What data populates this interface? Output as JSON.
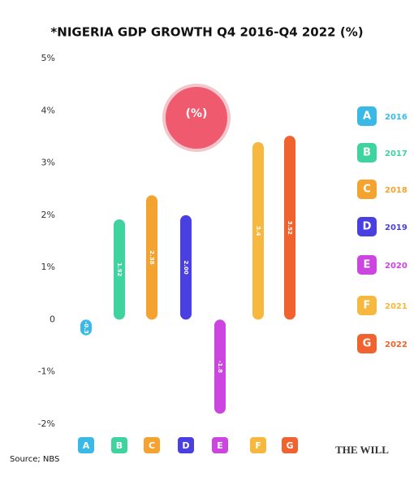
{
  "chart_data": {
    "type": "bar",
    "title": "*NIGERIA GDP GROWTH Q4 2016-Q4 2022 (%)",
    "badge": "(%)",
    "categories": [
      "A",
      "B",
      "C",
      "D",
      "E",
      "F",
      "G"
    ],
    "years": [
      "2016",
      "2017",
      "2018",
      "2019",
      "2020",
      "2021",
      "2022"
    ],
    "values": [
      -0.3,
      1.92,
      2.38,
      2,
      -1.8,
      3.4,
      3.52
    ],
    "value_labels": [
      "-0.3",
      "1.92",
      "2.38",
      "2.00",
      "-1.8",
      "3.4",
      "3.52"
    ],
    "colors": [
      "#3bb9e6",
      "#3fd3a0",
      "#f4a330",
      "#4a3fe0",
      "#cc45e0",
      "#f6b83e",
      "#f0632f"
    ],
    "ylim": [
      -2,
      5
    ],
    "yticks": [
      {
        "value": -2,
        "label": "-2%"
      },
      {
        "value": -1,
        "label": "-1%"
      },
      {
        "value": 0,
        "label": "0"
      },
      {
        "value": 1,
        "label": "1%"
      },
      {
        "value": 2,
        "label": "2%"
      },
      {
        "value": 3,
        "label": "3%"
      },
      {
        "value": 4,
        "label": "4%"
      },
      {
        "value": 5,
        "label": "5%"
      }
    ],
    "source": "Source; NBS",
    "logo": "THE WILL"
  }
}
